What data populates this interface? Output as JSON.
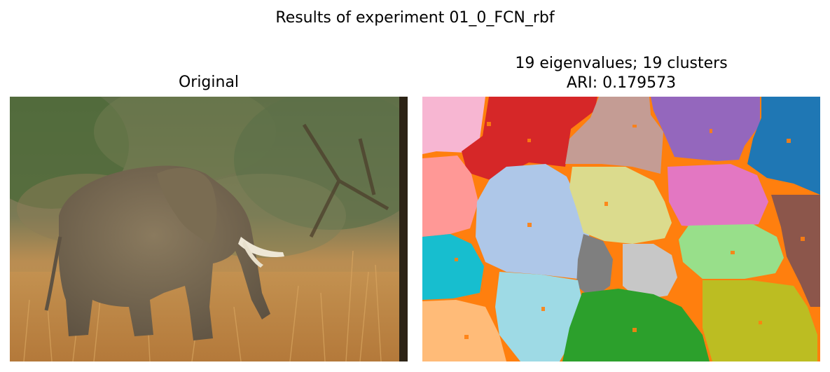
{
  "figure": {
    "suptitle": "Results of experiment 01_0_FCN_rbf"
  },
  "left_panel": {
    "title": "Original",
    "image": "photo of an elephant standing in dry golden grass with green trees behind"
  },
  "right_panel": {
    "title_line1": "19 eigenvalues; 19 clusters",
    "title_line2": "ARI: 0.179573",
    "image": "spectral clustering segmentation map with 19 colored clusters"
  },
  "colors": {
    "tab_blue": "#1f77b4",
    "tab_orange": "#ff7f0e",
    "tab_green": "#2ca02c",
    "tab_red": "#d62728",
    "tab_purple": "#9467bd",
    "tab_brown": "#8c564b",
    "tab_pink": "#e377c2",
    "tab_gray": "#7f7f7f",
    "tab_olive": "#bcbd22",
    "tab_cyan": "#17becf",
    "light_blue": "#aec7e8",
    "light_orange": "#ffbb78",
    "light_green": "#98df8a",
    "light_red": "#ff9896",
    "light_purple": "#c5b0d5",
    "light_brown": "#c49c94",
    "light_pink": "#f7b6d2",
    "light_gray": "#c7c7c7",
    "light_olive": "#dbdb8d",
    "light_cyan": "#9edae5"
  }
}
